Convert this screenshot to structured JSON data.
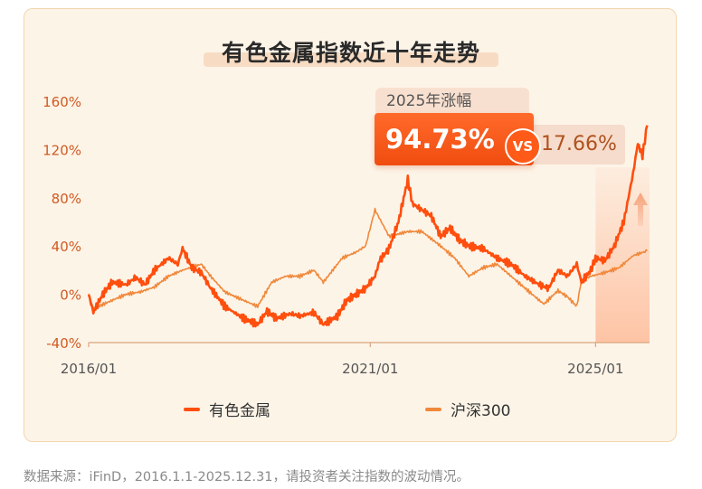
{
  "title": "有色金属指数近十年走势",
  "footer": "数据来源：iFinD，2016.1.1-2025.12.31，请投资者关注指数的波动情况。",
  "annotation": {
    "label": "2025年涨幅",
    "main_value": "94.73%",
    "vs": "VS",
    "compare_value": "17.66%"
  },
  "legend": [
    {
      "name": "有色金属",
      "color": "#ff4e0d"
    },
    {
      "name": "沪深300",
      "color": "#f0883a"
    }
  ],
  "colors": {
    "accent": "#ff4e0d",
    "secondary": "#f0883a",
    "background": "#fdf4e8"
  },
  "chart_data": {
    "type": "line",
    "title": "有色金属指数近十年走势",
    "xlabel": "",
    "ylabel": "",
    "ylim": [
      -40,
      160
    ],
    "yticks": [
      "160%",
      "120%",
      "80%",
      "40%",
      "0%",
      "-40%"
    ],
    "xticks": [
      "2016/01",
      "2021/01",
      "2025/01"
    ],
    "grid": false,
    "legend_position": "bottom",
    "series": [
      {
        "name": "有色金属",
        "x": [
          "2016/01",
          "2016/02",
          "2016/04",
          "2016/06",
          "2016/09",
          "2016/11",
          "2017/01",
          "2017/03",
          "2017/06",
          "2017/08",
          "2017/09",
          "2017/11",
          "2018/01",
          "2018/03",
          "2018/06",
          "2018/10",
          "2019/01",
          "2019/03",
          "2019/05",
          "2019/08",
          "2019/10",
          "2020/01",
          "2020/03",
          "2020/06",
          "2020/08",
          "2020/10",
          "2020/12",
          "2021/02",
          "2021/03",
          "2021/05",
          "2021/07",
          "2021/09",
          "2021/10",
          "2021/12",
          "2022/02",
          "2022/04",
          "2022/06",
          "2022/08",
          "2022/10",
          "2023/01",
          "2023/04",
          "2023/07",
          "2023/10",
          "2024/01",
          "2024/03",
          "2024/05",
          "2024/07",
          "2024/09",
          "2024/10",
          "2024/12",
          "2025/01",
          "2025/03",
          "2025/05",
          "2025/07",
          "2025/08",
          "2025/09",
          "2025/10",
          "2025/11",
          "2025/12"
        ],
        "values": [
          0,
          -15,
          0,
          10,
          8,
          14,
          8,
          20,
          30,
          25,
          38,
          22,
          18,
          5,
          -10,
          -20,
          -25,
          -14,
          -20,
          -16,
          -18,
          -15,
          -25,
          -18,
          -5,
          0,
          5,
          15,
          28,
          38,
          60,
          95,
          75,
          70,
          65,
          48,
          55,
          45,
          40,
          38,
          30,
          25,
          15,
          8,
          5,
          20,
          15,
          25,
          10,
          20,
          30,
          28,
          40,
          60,
          80,
          100,
          125,
          115,
          140
        ]
      },
      {
        "name": "沪深300",
        "x": [
          "2016/01",
          "2016/02",
          "2016/06",
          "2016/09",
          "2016/12",
          "2017/03",
          "2017/06",
          "2017/09",
          "2018/01",
          "2018/03",
          "2018/06",
          "2018/10",
          "2019/01",
          "2019/04",
          "2019/07",
          "2019/10",
          "2020/01",
          "2020/03",
          "2020/07",
          "2020/10",
          "2020/12",
          "2021/02",
          "2021/05",
          "2021/09",
          "2021/12",
          "2022/04",
          "2022/07",
          "2022/10",
          "2023/01",
          "2023/04",
          "2023/07",
          "2023/10",
          "2024/01",
          "2024/02",
          "2024/05",
          "2024/07",
          "2024/09",
          "2024/10",
          "2024/12",
          "2025/03",
          "2025/06",
          "2025/09",
          "2025/12"
        ],
        "values": [
          0,
          -12,
          -5,
          0,
          2,
          6,
          15,
          20,
          25,
          15,
          2,
          -5,
          -10,
          10,
          15,
          15,
          20,
          10,
          30,
          35,
          40,
          70,
          48,
          52,
          52,
          40,
          30,
          15,
          22,
          25,
          15,
          5,
          -5,
          -8,
          3,
          -2,
          -10,
          12,
          15,
          18,
          22,
          32,
          36
        ]
      }
    ]
  }
}
